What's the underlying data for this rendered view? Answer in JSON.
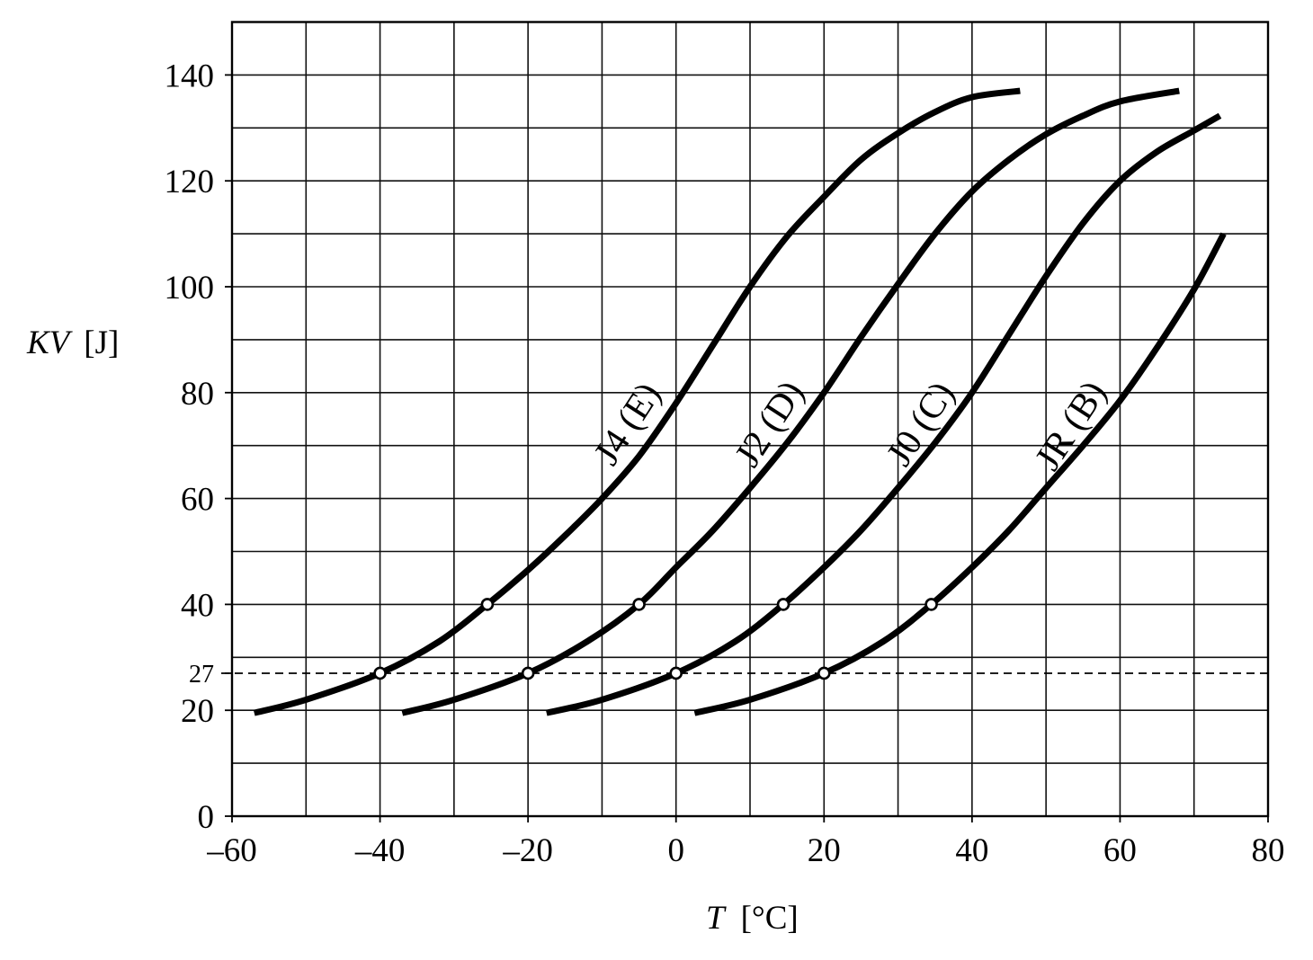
{
  "chart_data": {
    "type": "line",
    "xlabel": {
      "symbol": "T",
      "unit": "[°C]"
    },
    "ylabel": {
      "symbol": "KV",
      "unit": "[J]"
    },
    "xlim": [
      -60,
      80
    ],
    "ylim": [
      0,
      150
    ],
    "xticks": [
      -60,
      -40,
      -20,
      0,
      20,
      40,
      60,
      80
    ],
    "xtick_labels": [
      "–60",
      "–40",
      "–20",
      "0",
      "20",
      "40",
      "60",
      "80"
    ],
    "yticks": [
      0,
      20,
      27,
      40,
      60,
      80,
      100,
      120,
      140
    ],
    "ytick_labels": [
      "0",
      "20",
      "27",
      "40",
      "60",
      "80",
      "100",
      "120",
      "140"
    ],
    "grid": {
      "x_step": 10,
      "y_step": 10
    },
    "reference_lines": [
      {
        "y": 27,
        "dashed": true
      }
    ],
    "series": [
      {
        "name": "J4 (E)",
        "x": [
          -57,
          -50,
          -40,
          -32,
          -25.5,
          -20,
          -15,
          -10,
          -5,
          0,
          5,
          10,
          15,
          20,
          25,
          30,
          35,
          40,
          46.5
        ],
        "y": [
          19.5,
          22,
          27,
          33,
          40,
          46.5,
          53,
          60,
          68,
          78,
          89,
          100,
          109.5,
          117,
          124,
          129,
          133,
          135.8,
          137
        ],
        "markers": [
          {
            "x": -40,
            "y": 27
          },
          {
            "x": -25.5,
            "y": 40
          }
        ]
      },
      {
        "name": "J2 (D)",
        "x": [
          -37,
          -30,
          -20,
          -12,
          -5,
          0,
          5,
          10,
          15,
          20,
          25,
          30,
          35,
          40,
          45,
          50,
          55,
          60,
          68
        ],
        "y": [
          19.5,
          22,
          27,
          33,
          40,
          47,
          54,
          62,
          70.5,
          80,
          90.5,
          100.5,
          110,
          118,
          124,
          128.8,
          132.3,
          135,
          137
        ],
        "markers": [
          {
            "x": -20,
            "y": 27
          },
          {
            "x": -5,
            "y": 40
          }
        ]
      },
      {
        "name": "J0 (C)",
        "x": [
          -17.5,
          -10,
          0,
          8,
          14.5,
          20,
          25,
          30,
          35,
          40,
          45,
          50,
          55,
          60,
          65,
          70,
          73.5
        ],
        "y": [
          19.5,
          22,
          27,
          33,
          40,
          47,
          54,
          62,
          70.5,
          80,
          91,
          102,
          112,
          120,
          125.5,
          129.5,
          132.3
        ],
        "markers": [
          {
            "x": 0,
            "y": 27
          },
          {
            "x": 14.5,
            "y": 40
          }
        ]
      },
      {
        "name": "JR (B)",
        "x": [
          2.5,
          10,
          20,
          28,
          34.5,
          40,
          45,
          50,
          55,
          60,
          65,
          70,
          74
        ],
        "y": [
          19.5,
          22,
          27,
          33,
          40,
          47,
          54,
          62,
          70,
          78.5,
          88.5,
          99.5,
          110
        ],
        "markers": [
          {
            "x": 20,
            "y": 27
          },
          {
            "x": 34.5,
            "y": 40
          }
        ]
      }
    ]
  }
}
